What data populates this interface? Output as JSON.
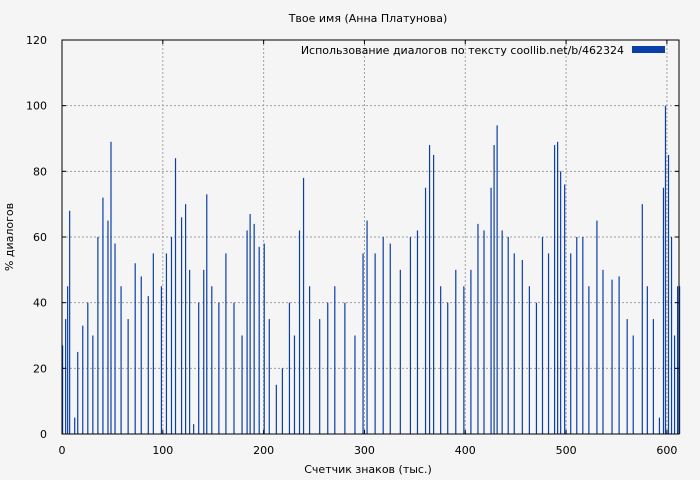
{
  "chart_data": {
    "type": "bar",
    "title": "Твое имя (Анна Платунова)",
    "xlabel": "Счетчик знаков (тыс.)",
    "ylabel": "% диалогов",
    "xlim": [
      0,
      612
    ],
    "ylim": [
      0,
      120
    ],
    "x_ticks": [
      0,
      100,
      200,
      300,
      400,
      500,
      600
    ],
    "y_ticks": [
      0,
      20,
      40,
      60,
      80,
      100,
      120
    ],
    "grid": true,
    "legend_position": "top-right",
    "series": [
      {
        "name": "Использование диалогов по тексту  coollib.net/b/462324",
        "color": "#0b3fa8",
        "bin_width": 1,
        "peaks": [
          {
            "x": 0,
            "y": 27
          },
          {
            "x": 3,
            "y": 35
          },
          {
            "x": 5,
            "y": 45
          },
          {
            "x": 7,
            "y": 68
          },
          {
            "x": 12,
            "y": 5
          },
          {
            "x": 15,
            "y": 25
          },
          {
            "x": 20,
            "y": 33
          },
          {
            "x": 25,
            "y": 40
          },
          {
            "x": 30,
            "y": 30
          },
          {
            "x": 35,
            "y": 60
          },
          {
            "x": 40,
            "y": 72
          },
          {
            "x": 45,
            "y": 65
          },
          {
            "x": 48,
            "y": 89
          },
          {
            "x": 52,
            "y": 58
          },
          {
            "x": 58,
            "y": 45
          },
          {
            "x": 65,
            "y": 35
          },
          {
            "x": 72,
            "y": 52
          },
          {
            "x": 78,
            "y": 48
          },
          {
            "x": 85,
            "y": 42
          },
          {
            "x": 90,
            "y": 55
          },
          {
            "x": 98,
            "y": 45
          },
          {
            "x": 103,
            "y": 55
          },
          {
            "x": 108,
            "y": 60
          },
          {
            "x": 112,
            "y": 84
          },
          {
            "x": 118,
            "y": 66
          },
          {
            "x": 122,
            "y": 70
          },
          {
            "x": 126,
            "y": 50
          },
          {
            "x": 130,
            "y": 3
          },
          {
            "x": 135,
            "y": 40
          },
          {
            "x": 140,
            "y": 50
          },
          {
            "x": 143,
            "y": 73
          },
          {
            "x": 148,
            "y": 45
          },
          {
            "x": 155,
            "y": 40
          },
          {
            "x": 162,
            "y": 55
          },
          {
            "x": 170,
            "y": 40
          },
          {
            "x": 178,
            "y": 30
          },
          {
            "x": 183,
            "y": 62
          },
          {
            "x": 186,
            "y": 67
          },
          {
            "x": 190,
            "y": 64
          },
          {
            "x": 195,
            "y": 57
          },
          {
            "x": 200,
            "y": 58
          },
          {
            "x": 205,
            "y": 35
          },
          {
            "x": 212,
            "y": 15
          },
          {
            "x": 218,
            "y": 20
          },
          {
            "x": 225,
            "y": 40
          },
          {
            "x": 230,
            "y": 30
          },
          {
            "x": 235,
            "y": 62
          },
          {
            "x": 239,
            "y": 78
          },
          {
            "x": 245,
            "y": 45
          },
          {
            "x": 255,
            "y": 35
          },
          {
            "x": 263,
            "y": 40
          },
          {
            "x": 270,
            "y": 45
          },
          {
            "x": 280,
            "y": 40
          },
          {
            "x": 290,
            "y": 30
          },
          {
            "x": 298,
            "y": 55
          },
          {
            "x": 302,
            "y": 65
          },
          {
            "x": 310,
            "y": 55
          },
          {
            "x": 318,
            "y": 60
          },
          {
            "x": 325,
            "y": 58
          },
          {
            "x": 335,
            "y": 50
          },
          {
            "x": 345,
            "y": 60
          },
          {
            "x": 352,
            "y": 62
          },
          {
            "x": 360,
            "y": 75
          },
          {
            "x": 364,
            "y": 88
          },
          {
            "x": 368,
            "y": 85
          },
          {
            "x": 375,
            "y": 45
          },
          {
            "x": 382,
            "y": 40
          },
          {
            "x": 390,
            "y": 50
          },
          {
            "x": 398,
            "y": 45
          },
          {
            "x": 405,
            "y": 50
          },
          {
            "x": 412,
            "y": 64
          },
          {
            "x": 418,
            "y": 62
          },
          {
            "x": 425,
            "y": 75
          },
          {
            "x": 428,
            "y": 88
          },
          {
            "x": 431,
            "y": 94
          },
          {
            "x": 436,
            "y": 62
          },
          {
            "x": 442,
            "y": 60
          },
          {
            "x": 448,
            "y": 55
          },
          {
            "x": 456,
            "y": 53
          },
          {
            "x": 463,
            "y": 45
          },
          {
            "x": 470,
            "y": 40
          },
          {
            "x": 476,
            "y": 60
          },
          {
            "x": 482,
            "y": 55
          },
          {
            "x": 488,
            "y": 88
          },
          {
            "x": 491,
            "y": 89
          },
          {
            "x": 494,
            "y": 80
          },
          {
            "x": 498,
            "y": 76
          },
          {
            "x": 504,
            "y": 55
          },
          {
            "x": 510,
            "y": 60
          },
          {
            "x": 516,
            "y": 60
          },
          {
            "x": 522,
            "y": 45
          },
          {
            "x": 530,
            "y": 65
          },
          {
            "x": 536,
            "y": 50
          },
          {
            "x": 545,
            "y": 47
          },
          {
            "x": 552,
            "y": 48
          },
          {
            "x": 560,
            "y": 35
          },
          {
            "x": 566,
            "y": 30
          },
          {
            "x": 575,
            "y": 70
          },
          {
            "x": 580,
            "y": 45
          },
          {
            "x": 586,
            "y": 35
          },
          {
            "x": 592,
            "y": 5
          },
          {
            "x": 596,
            "y": 75
          },
          {
            "x": 598,
            "y": 100
          },
          {
            "x": 601,
            "y": 85
          },
          {
            "x": 604,
            "y": 60
          },
          {
            "x": 607,
            "y": 30
          },
          {
            "x": 610,
            "y": 45
          },
          {
            "x": 612,
            "y": 45
          }
        ]
      }
    ]
  }
}
